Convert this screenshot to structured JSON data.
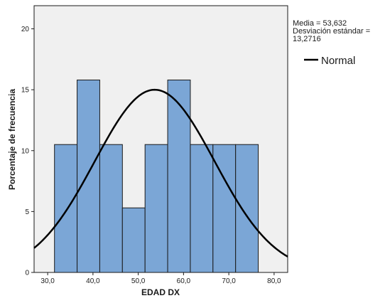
{
  "chart_data": {
    "type": "bar",
    "subtype": "histogram",
    "xlabel": "EDAD DX",
    "ylabel": "Porcentaje de frecuencia",
    "xlim": [
      27,
      83
    ],
    "ylim": [
      0,
      21.9
    ],
    "x_ticks": [
      {
        "value": 30,
        "label": "30,0"
      },
      {
        "value": 40,
        "label": "40,0"
      },
      {
        "value": 50,
        "label": "50,0"
      },
      {
        "value": 60,
        "label": "60,0"
      },
      {
        "value": 70,
        "label": "70,0"
      },
      {
        "value": 80,
        "label": "80,0"
      }
    ],
    "y_ticks": [
      {
        "value": 0,
        "label": "0"
      },
      {
        "value": 5,
        "label": "5"
      },
      {
        "value": 10,
        "label": "10"
      },
      {
        "value": 15,
        "label": "15"
      },
      {
        "value": 20,
        "label": "20"
      }
    ],
    "bins": [
      {
        "start": 31.5,
        "end": 36.5,
        "value": 10.5
      },
      {
        "start": 36.5,
        "end": 41.5,
        "value": 15.8
      },
      {
        "start": 41.5,
        "end": 46.5,
        "value": 10.5
      },
      {
        "start": 46.5,
        "end": 51.5,
        "value": 5.3
      },
      {
        "start": 51.5,
        "end": 56.5,
        "value": 10.5
      },
      {
        "start": 56.5,
        "end": 61.5,
        "value": 15.8
      },
      {
        "start": 61.5,
        "end": 66.5,
        "value": 10.5
      },
      {
        "start": 66.5,
        "end": 71.5,
        "value": 10.5
      },
      {
        "start": 71.5,
        "end": 76.5,
        "value": 10.5
      }
    ],
    "normal_curve": {
      "mean": 53.632,
      "sd": 13.2716,
      "peak": 15.0
    },
    "stats_lines": [
      "Media = 53,632",
      "Desviación estándar =",
      "13,2716"
    ],
    "legend": {
      "entries": [
        {
          "name": "Normal",
          "color": "#000000"
        }
      ],
      "placement": "right"
    },
    "grid": false,
    "colors": {
      "bar_fill": "#7ba6d6",
      "bar_stroke": "#1a1a1a",
      "plot_bg": "#f0f0f0",
      "curve": "#000000"
    }
  }
}
